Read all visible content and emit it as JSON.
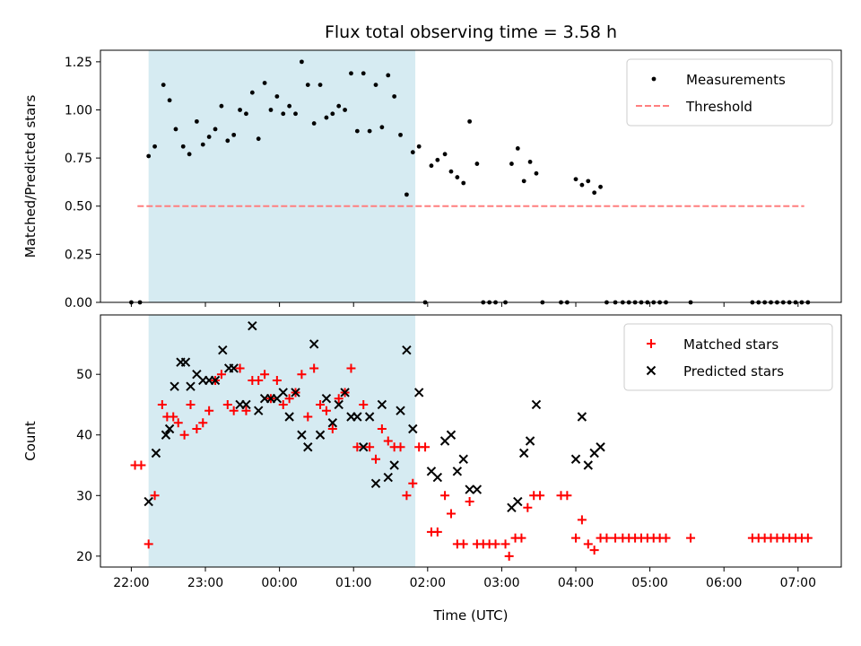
{
  "chart_data": [
    {
      "type": "scatter",
      "title": "Flux total observing time = 3.58 h",
      "xlabel": "",
      "ylabel": "Matched/Predicted stars",
      "xlim": [
        "21:35",
        "07:35"
      ],
      "ylim": [
        0,
        1.31
      ],
      "yticks": [
        "0.00",
        "0.25",
        "0.50",
        "0.75",
        "1.00",
        "1.25"
      ],
      "xticks": [
        "22:00",
        "23:00",
        "00:00",
        "01:00",
        "02:00",
        "03:00",
        "04:00",
        "05:00",
        "06:00",
        "07:00"
      ],
      "highlight_span": [
        "22:14",
        "01:50"
      ],
      "legend": {
        "location": "upper right",
        "entries": [
          "Measurements",
          "Threshold"
        ]
      },
      "series": [
        {
          "name": "Measurements",
          "marker": "dot",
          "color": "#000000",
          "points": [
            [
              "22:00",
              0.0
            ],
            [
              "22:07",
              0.0
            ],
            [
              "22:14",
              0.76
            ],
            [
              "22:19",
              0.81
            ],
            [
              "22:26",
              1.13
            ],
            [
              "22:31",
              1.05
            ],
            [
              "22:36",
              0.9
            ],
            [
              "22:42",
              0.81
            ],
            [
              "22:47",
              0.77
            ],
            [
              "22:53",
              0.94
            ],
            [
              "22:58",
              0.82
            ],
            [
              "23:03",
              0.86
            ],
            [
              "23:08",
              0.9
            ],
            [
              "23:13",
              1.02
            ],
            [
              "23:18",
              0.84
            ],
            [
              "23:23",
              0.87
            ],
            [
              "23:28",
              1.0
            ],
            [
              "23:33",
              0.98
            ],
            [
              "23:38",
              1.09
            ],
            [
              "23:43",
              0.85
            ],
            [
              "23:48",
              1.14
            ],
            [
              "23:53",
              1.0
            ],
            [
              "23:58",
              1.07
            ],
            [
              "00:03",
              0.98
            ],
            [
              "00:08",
              1.02
            ],
            [
              "00:13",
              0.98
            ],
            [
              "00:18",
              1.25
            ],
            [
              "00:23",
              1.13
            ],
            [
              "00:28",
              0.93
            ],
            [
              "00:33",
              1.13
            ],
            [
              "00:38",
              0.96
            ],
            [
              "00:43",
              0.98
            ],
            [
              "00:48",
              1.02
            ],
            [
              "00:53",
              1.0
            ],
            [
              "00:58",
              1.19
            ],
            [
              "01:03",
              0.89
            ],
            [
              "01:08",
              1.19
            ],
            [
              "01:13",
              0.89
            ],
            [
              "01:18",
              1.13
            ],
            [
              "01:23",
              0.91
            ],
            [
              "01:28",
              1.18
            ],
            [
              "01:33",
              1.07
            ],
            [
              "01:38",
              0.87
            ],
            [
              "01:43",
              0.56
            ],
            [
              "01:48",
              0.78
            ],
            [
              "01:53",
              0.81
            ],
            [
              "01:58",
              0.0
            ],
            [
              "02:03",
              0.71
            ],
            [
              "02:08",
              0.74
            ],
            [
              "02:14",
              0.77
            ],
            [
              "02:19",
              0.68
            ],
            [
              "02:24",
              0.65
            ],
            [
              "02:29",
              0.62
            ],
            [
              "02:34",
              0.94
            ],
            [
              "02:40",
              0.72
            ],
            [
              "02:45",
              0.0
            ],
            [
              "02:50",
              0.0
            ],
            [
              "02:55",
              0.0
            ],
            [
              "03:03",
              0.0
            ],
            [
              "03:08",
              0.72
            ],
            [
              "03:13",
              0.8
            ],
            [
              "03:18",
              0.63
            ],
            [
              "03:23",
              0.73
            ],
            [
              "03:28",
              0.67
            ],
            [
              "03:33",
              0.0
            ],
            [
              "03:48",
              0.0
            ],
            [
              "03:53",
              0.0
            ],
            [
              "04:00",
              0.64
            ],
            [
              "04:05",
              0.61
            ],
            [
              "04:10",
              0.63
            ],
            [
              "04:15",
              0.57
            ],
            [
              "04:20",
              0.6
            ],
            [
              "04:25",
              0.0
            ],
            [
              "04:32",
              0.0
            ],
            [
              "04:38",
              0.0
            ],
            [
              "04:43",
              0.0
            ],
            [
              "04:48",
              0.0
            ],
            [
              "04:53",
              0.0
            ],
            [
              "04:58",
              0.0
            ],
            [
              "05:03",
              0.0
            ],
            [
              "05:08",
              0.0
            ],
            [
              "05:13",
              0.0
            ],
            [
              "05:33",
              0.0
            ],
            [
              "06:23",
              0.0
            ],
            [
              "06:28",
              0.0
            ],
            [
              "06:33",
              0.0
            ],
            [
              "06:38",
              0.0
            ],
            [
              "06:43",
              0.0
            ],
            [
              "06:48",
              0.0
            ],
            [
              "06:53",
              0.0
            ],
            [
              "06:58",
              0.0
            ],
            [
              "07:03",
              0.0
            ],
            [
              "07:08",
              0.0
            ]
          ]
        },
        {
          "name": "Threshold",
          "marker": "dashed-line",
          "color": "#ff7f7f",
          "points": [
            [
              "22:05",
              0.5
            ],
            [
              "07:05",
              0.5
            ]
          ]
        }
      ]
    },
    {
      "type": "scatter",
      "title": "",
      "xlabel": "Time (UTC)",
      "ylabel": "Count",
      "xlim": [
        "21:35",
        "07:35"
      ],
      "ylim": [
        18.2,
        59.8
      ],
      "yticks": [
        "20",
        "30",
        "40",
        "50"
      ],
      "xticks": [
        "22:00",
        "23:00",
        "00:00",
        "01:00",
        "02:00",
        "03:00",
        "04:00",
        "05:00",
        "06:00",
        "07:00"
      ],
      "highlight_span": [
        "22:14",
        "01:50"
      ],
      "legend": {
        "location": "upper right",
        "entries": [
          "Matched stars",
          "Predicted stars"
        ]
      },
      "series": [
        {
          "name": "Matched stars",
          "marker": "plus",
          "color": "#ff0000",
          "points": [
            [
              "22:03",
              35
            ],
            [
              "22:08",
              35
            ],
            [
              "22:14",
              22
            ],
            [
              "22:19",
              30
            ],
            [
              "22:25",
              45
            ],
            [
              "22:29",
              43
            ],
            [
              "22:34",
              43
            ],
            [
              "22:38",
              42
            ],
            [
              "22:43",
              40
            ],
            [
              "22:48",
              45
            ],
            [
              "22:53",
              41
            ],
            [
              "22:58",
              42
            ],
            [
              "23:03",
              44
            ],
            [
              "23:08",
              49
            ],
            [
              "23:13",
              50
            ],
            [
              "23:18",
              45
            ],
            [
              "23:23",
              44
            ],
            [
              "23:28",
              51
            ],
            [
              "23:33",
              44
            ],
            [
              "23:38",
              49
            ],
            [
              "23:43",
              49
            ],
            [
              "23:48",
              50
            ],
            [
              "23:53",
              46
            ],
            [
              "23:58",
              49
            ],
            [
              "00:03",
              45
            ],
            [
              "00:08",
              46
            ],
            [
              "00:13",
              47
            ],
            [
              "00:18",
              50
            ],
            [
              "00:23",
              43
            ],
            [
              "00:28",
              51
            ],
            [
              "00:33",
              45
            ],
            [
              "00:38",
              44
            ],
            [
              "00:43",
              41
            ],
            [
              "00:48",
              46
            ],
            [
              "00:53",
              47
            ],
            [
              "00:58",
              51
            ],
            [
              "01:03",
              38
            ],
            [
              "01:08",
              45
            ],
            [
              "01:13",
              38
            ],
            [
              "01:18",
              36
            ],
            [
              "01:23",
              41
            ],
            [
              "01:28",
              39
            ],
            [
              "01:33",
              38
            ],
            [
              "01:38",
              38
            ],
            [
              "01:43",
              30
            ],
            [
              "01:48",
              32
            ],
            [
              "01:53",
              38
            ],
            [
              "01:58",
              38
            ],
            [
              "02:03",
              24
            ],
            [
              "02:08",
              24
            ],
            [
              "02:14",
              30
            ],
            [
              "02:19",
              27
            ],
            [
              "02:24",
              22
            ],
            [
              "02:29",
              22
            ],
            [
              "02:34",
              29
            ],
            [
              "02:40",
              22
            ],
            [
              "02:45",
              22
            ],
            [
              "02:50",
              22
            ],
            [
              "02:55",
              22
            ],
            [
              "03:03",
              22
            ],
            [
              "03:06",
              20
            ],
            [
              "03:11",
              23
            ],
            [
              "03:16",
              23
            ],
            [
              "03:21",
              28
            ],
            [
              "03:26",
              30
            ],
            [
              "03:31",
              30
            ],
            [
              "03:48",
              30
            ],
            [
              "03:53",
              30
            ],
            [
              "04:00",
              23
            ],
            [
              "04:05",
              26
            ],
            [
              "04:10",
              22
            ],
            [
              "04:15",
              21
            ],
            [
              "04:20",
              23
            ],
            [
              "04:25",
              23
            ],
            [
              "04:32",
              23
            ],
            [
              "04:38",
              23
            ],
            [
              "04:43",
              23
            ],
            [
              "04:48",
              23
            ],
            [
              "04:53",
              23
            ],
            [
              "04:58",
              23
            ],
            [
              "05:03",
              23
            ],
            [
              "05:08",
              23
            ],
            [
              "05:13",
              23
            ],
            [
              "05:33",
              23
            ],
            [
              "06:23",
              23
            ],
            [
              "06:28",
              23
            ],
            [
              "06:33",
              23
            ],
            [
              "06:38",
              23
            ],
            [
              "06:43",
              23
            ],
            [
              "06:48",
              23
            ],
            [
              "06:53",
              23
            ],
            [
              "06:58",
              23
            ],
            [
              "07:03",
              23
            ],
            [
              "07:08",
              23
            ]
          ]
        },
        {
          "name": "Predicted stars",
          "marker": "x",
          "color": "#000000",
          "points": [
            [
              "22:14",
              29
            ],
            [
              "22:20",
              37
            ],
            [
              "22:28",
              40
            ],
            [
              "22:31",
              41
            ],
            [
              "22:35",
              48
            ],
            [
              "22:40",
              52
            ],
            [
              "22:44",
              52
            ],
            [
              "22:48",
              48
            ],
            [
              "22:53",
              50
            ],
            [
              "22:58",
              49
            ],
            [
              "23:03",
              49
            ],
            [
              "23:08",
              49
            ],
            [
              "23:14",
              54
            ],
            [
              "23:19",
              51
            ],
            [
              "23:23",
              51
            ],
            [
              "23:28",
              45
            ],
            [
              "23:33",
              45
            ],
            [
              "23:38",
              58
            ],
            [
              "23:43",
              44
            ],
            [
              "23:48",
              46
            ],
            [
              "23:53",
              46
            ],
            [
              "23:58",
              46
            ],
            [
              "00:03",
              47
            ],
            [
              "00:08",
              43
            ],
            [
              "00:13",
              47
            ],
            [
              "00:18",
              40
            ],
            [
              "00:23",
              38
            ],
            [
              "00:28",
              55
            ],
            [
              "00:33",
              40
            ],
            [
              "00:38",
              46
            ],
            [
              "00:43",
              42
            ],
            [
              "00:48",
              45
            ],
            [
              "00:53",
              47
            ],
            [
              "00:58",
              43
            ],
            [
              "01:03",
              43
            ],
            [
              "01:08",
              38
            ],
            [
              "01:13",
              43
            ],
            [
              "01:18",
              32
            ],
            [
              "01:23",
              45
            ],
            [
              "01:28",
              33
            ],
            [
              "01:33",
              35
            ],
            [
              "01:38",
              44
            ],
            [
              "01:43",
              54
            ],
            [
              "01:48",
              41
            ],
            [
              "01:53",
              47
            ],
            [
              "02:03",
              34
            ],
            [
              "02:08",
              33
            ],
            [
              "02:14",
              39
            ],
            [
              "02:19",
              40
            ],
            [
              "02:24",
              34
            ],
            [
              "02:29",
              36
            ],
            [
              "02:34",
              31
            ],
            [
              "02:40",
              31
            ],
            [
              "03:08",
              28
            ],
            [
              "03:13",
              29
            ],
            [
              "03:18",
              37
            ],
            [
              "03:23",
              39
            ],
            [
              "03:28",
              45
            ],
            [
              "04:00",
              36
            ],
            [
              "04:05",
              43
            ],
            [
              "04:10",
              35
            ],
            [
              "04:15",
              37
            ],
            [
              "04:20",
              38
            ]
          ]
        }
      ]
    }
  ]
}
